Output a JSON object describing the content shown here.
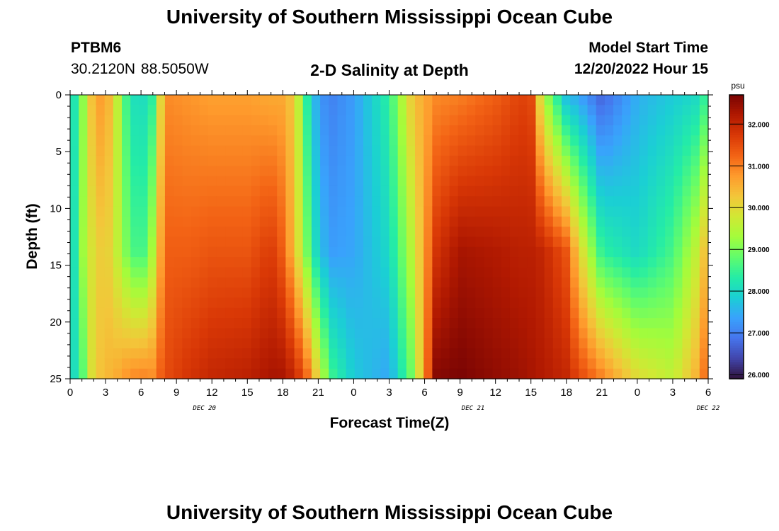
{
  "page": {
    "title": "University of Southern Mississippi Ocean Cube",
    "footer_title": "University of Southern Mississippi Ocean Cube",
    "station": "PTBM6",
    "location": "30.2120N  88.5050W",
    "chart_heading": "2-D Salinity at Depth",
    "model_start_label": "Model Start Time",
    "model_start_value": "12/20/2022 Hour 15"
  },
  "chart_data": {
    "type": "heatmap",
    "title": "2-D Salinity at Depth",
    "xlabel": "Forecast Time(Z)",
    "ylabel": "Depth (ft)",
    "colorbar_unit": "psu",
    "x_ticks": [
      "0",
      "3",
      "6",
      "9",
      "12",
      "15",
      "18",
      "21",
      "0",
      "3",
      "6",
      "9",
      "12",
      "15",
      "18",
      "21",
      "0",
      "3",
      "6"
    ],
    "date_labels": [
      {
        "label": "DEC 20",
        "hour_index": 12
      },
      {
        "label": "DEC 21",
        "hour_index": 36
      },
      {
        "label": "DEC 22",
        "hour_index": 57
      }
    ],
    "x_range_hours": [
      0,
      54
    ],
    "y_ticks": [
      "0",
      "5",
      "10",
      "15",
      "20",
      "25"
    ],
    "ylim": [
      0,
      25
    ],
    "y_inverted": true,
    "colorbar_ticks": [
      "32.000",
      "31.000",
      "30.000",
      "29.000",
      "28.000",
      "27.000",
      "26.000"
    ],
    "colorbar_range": [
      25.9,
      32.7
    ],
    "colormap": [
      "#30123b",
      "#4145ab",
      "#4675ed",
      "#39a2fc",
      "#1bcfd4",
      "#24eca6",
      "#61fc6c",
      "#a4fc3b",
      "#d1e834",
      "#f3c63a",
      "#fe9b2d",
      "#f36315",
      "#d93806",
      "#b11901",
      "#7a0403"
    ],
    "grid": false,
    "legend": "colorbar-right",
    "salinity_keyframes_by_hour": [
      {
        "hour": 0,
        "surface": 27.8,
        "mid": 27.6,
        "bottom": 27.8
      },
      {
        "hour": 1,
        "surface": 29.0,
        "mid": 29.2,
        "bottom": 28.6
      },
      {
        "hour": 2,
        "surface": 30.6,
        "mid": 30.0,
        "bottom": 30.2
      },
      {
        "hour": 3,
        "surface": 30.8,
        "mid": 30.3,
        "bottom": 30.4
      },
      {
        "hour": 4,
        "surface": 29.6,
        "mid": 29.6,
        "bottom": 30.6
      },
      {
        "hour": 5,
        "surface": 28.2,
        "mid": 28.8,
        "bottom": 30.9
      },
      {
        "hour": 6,
        "surface": 28.0,
        "mid": 28.4,
        "bottom": 31.0
      },
      {
        "hour": 7,
        "surface": 28.4,
        "mid": 29.4,
        "bottom": 30.9
      },
      {
        "hour": 8,
        "surface": 30.9,
        "mid": 31.3,
        "bottom": 31.5
      },
      {
        "hour": 10,
        "surface": 30.8,
        "mid": 31.3,
        "bottom": 31.8
      },
      {
        "hour": 12,
        "surface": 30.7,
        "mid": 31.4,
        "bottom": 32.0
      },
      {
        "hour": 15,
        "surface": 30.7,
        "mid": 31.4,
        "bottom": 32.1
      },
      {
        "hour": 17,
        "surface": 30.6,
        "mid": 31.7,
        "bottom": 32.3
      },
      {
        "hour": 18,
        "surface": 30.6,
        "mid": 31.3,
        "bottom": 32.3
      },
      {
        "hour": 19,
        "surface": 30.2,
        "mid": 30.3,
        "bottom": 32.0
      },
      {
        "hour": 20,
        "surface": 28.4,
        "mid": 29.0,
        "bottom": 31.3
      },
      {
        "hour": 21,
        "surface": 27.3,
        "mid": 27.8,
        "bottom": 30.0
      },
      {
        "hour": 22,
        "surface": 27.0,
        "mid": 27.3,
        "bottom": 28.6
      },
      {
        "hour": 24,
        "surface": 27.3,
        "mid": 27.4,
        "bottom": 27.8
      },
      {
        "hour": 27,
        "surface": 28.4,
        "mid": 28.0,
        "bottom": 27.4
      },
      {
        "hour": 29,
        "surface": 30.3,
        "mid": 29.6,
        "bottom": 29.0
      },
      {
        "hour": 31,
        "surface": 30.9,
        "mid": 31.8,
        "bottom": 32.6
      },
      {
        "hour": 33,
        "surface": 31.0,
        "mid": 32.3,
        "bottom": 32.7
      },
      {
        "hour": 36,
        "surface": 31.3,
        "mid": 32.2,
        "bottom": 32.5
      },
      {
        "hour": 38,
        "surface": 31.6,
        "mid": 32.1,
        "bottom": 32.4
      },
      {
        "hour": 39,
        "surface": 31.6,
        "mid": 32.1,
        "bottom": 32.3
      },
      {
        "hour": 40,
        "surface": 29.5,
        "mid": 32.0,
        "bottom": 32.2
      },
      {
        "hour": 42,
        "surface": 27.6,
        "mid": 31.4,
        "bottom": 32.0
      },
      {
        "hour": 43,
        "surface": 27.4,
        "mid": 30.2,
        "bottom": 31.6
      },
      {
        "hour": 45,
        "surface": 26.7,
        "mid": 28.4,
        "bottom": 31.0
      },
      {
        "hour": 48,
        "surface": 27.5,
        "mid": 28.0,
        "bottom": 30.0
      },
      {
        "hour": 51,
        "surface": 27.8,
        "mid": 28.6,
        "bottom": 29.6
      },
      {
        "hour": 53,
        "surface": 28.0,
        "mid": 29.6,
        "bottom": 30.5
      },
      {
        "hour": 54,
        "surface": 28.6,
        "mid": 30.6,
        "bottom": 31.4
      }
    ]
  }
}
